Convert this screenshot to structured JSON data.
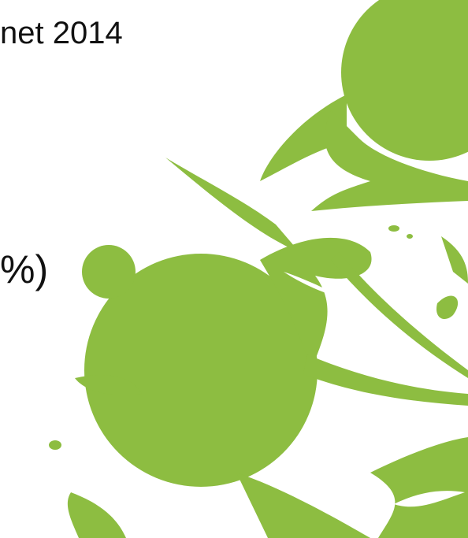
{
  "slide": {
    "heading_fragment": "net 2014",
    "label_fragment": "%)"
  }
}
